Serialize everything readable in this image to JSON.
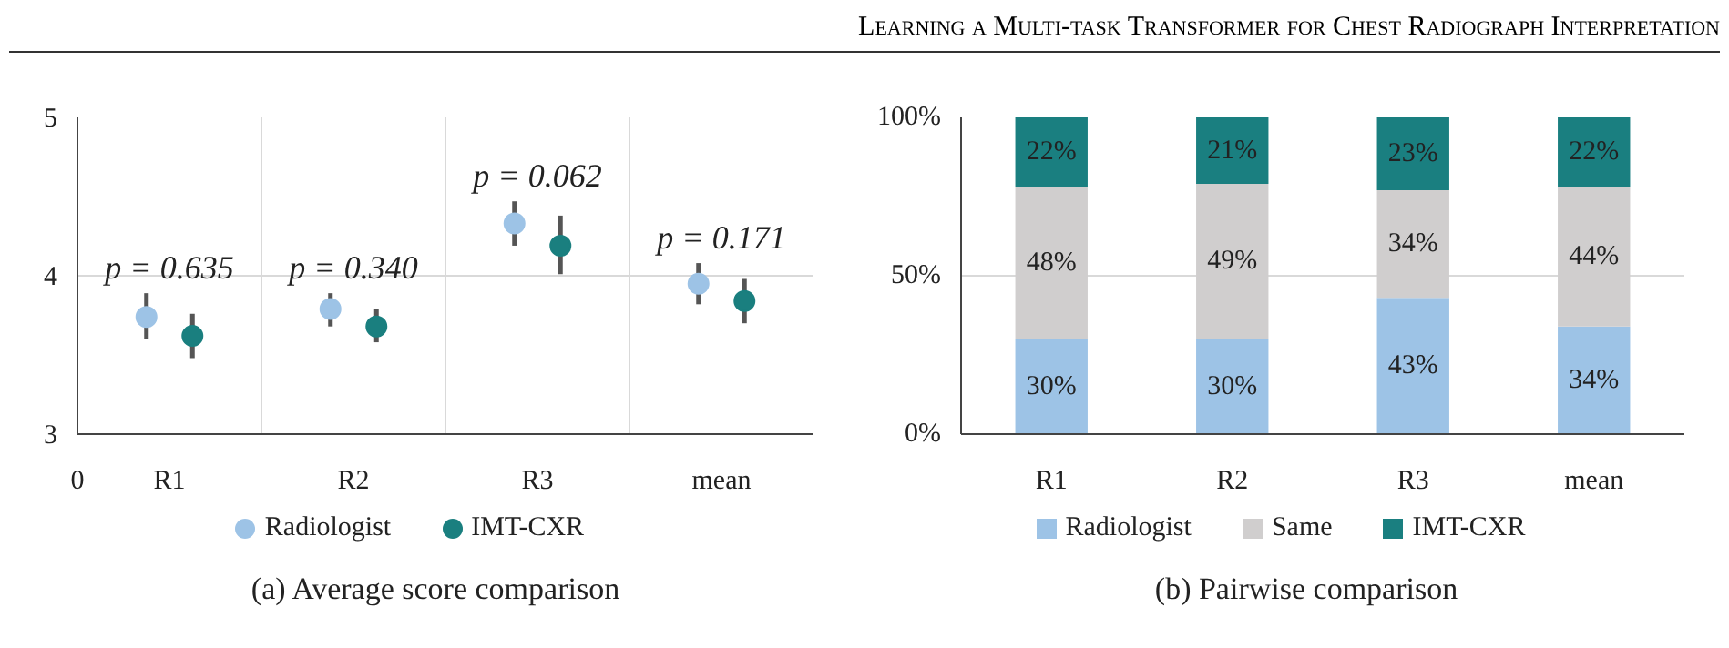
{
  "chart_data": [
    {
      "type": "scatter",
      "title": "(a) Average score comparison",
      "categories": [
        "R1",
        "R2",
        "R3",
        "mean"
      ],
      "ylim": [
        3,
        5
      ],
      "yticks": [
        3,
        4,
        5
      ],
      "grid": true,
      "legend": "bottom",
      "marker": "circle",
      "annotations": [
        "Learning a Multi-task Transformer for Chest Radiograph Interpretation",
        "0",
        "p = 0.635",
        "p = 0.340",
        "p = 0.062",
        "p = 0.171"
      ],
      "series": [
        {
          "name": "Radiologist",
          "color": "#9dc3e6",
          "values": [
            3.74,
            3.79,
            4.33,
            3.95
          ],
          "errors": [
            [
              3.6,
              3.89
            ],
            [
              3.68,
              3.89
            ],
            [
              4.19,
              4.47
            ],
            [
              3.82,
              4.08
            ]
          ]
        },
        {
          "name": "IMT-CXR",
          "color": "#1a7f7f",
          "values": [
            3.62,
            3.68,
            4.19,
            3.84
          ],
          "errors": [
            [
              3.48,
              3.76
            ],
            [
              3.58,
              3.79
            ],
            [
              4.01,
              4.38
            ],
            [
              3.7,
              3.98
            ]
          ]
        }
      ]
    },
    {
      "type": "bar",
      "stacked": true,
      "title": "(b) Pairwise comparison",
      "categories": [
        "R1",
        "R2",
        "R3",
        "mean"
      ],
      "ylim": [
        0,
        100
      ],
      "yticks": [
        {
          "value": 0,
          "label": "0%"
        },
        {
          "value": 50,
          "label": "50%"
        },
        {
          "value": 100,
          "label": "100%"
        }
      ],
      "grid": "y",
      "legend": "bottom",
      "series": [
        {
          "name": "Radiologist",
          "color": "#9dc3e6",
          "values": [
            30,
            30,
            43,
            34
          ],
          "value_labels": [
            "30%",
            "30%",
            "43%",
            "34%"
          ]
        },
        {
          "name": "Same",
          "color": "#d0cece",
          "values": [
            48,
            49,
            34,
            44
          ],
          "value_labels": [
            "48%",
            "49%",
            "34%",
            "44%"
          ]
        },
        {
          "name": "IMT-CXR",
          "color": "#1a7f80",
          "values": [
            22,
            21,
            23,
            22
          ],
          "value_labels": [
            "22%",
            "21%",
            "23%",
            "22%"
          ]
        }
      ]
    }
  ]
}
